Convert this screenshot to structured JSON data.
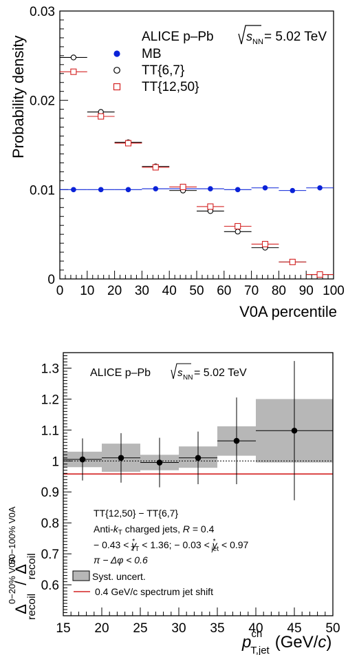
{
  "chart_data": [
    {
      "type": "scatter",
      "xlabel": "V0A percentile",
      "ylabel": "Probability density",
      "xlim": [
        0,
        100
      ],
      "ylim": [
        0,
        0.03
      ],
      "x_ticks": [
        "0",
        "10",
        "20",
        "30",
        "40",
        "50",
        "60",
        "70",
        "80",
        "90",
        "100"
      ],
      "y_ticks": [
        "0",
        "0.01",
        "0.02",
        "0.03"
      ],
      "legend": {
        "header_prefix": "ALICE p–Pb",
        "header_energy": "= 5.02 TeV",
        "entries": [
          {
            "label": "MB",
            "marker": "filled-circle",
            "color": "#0a22d8"
          },
          {
            "label": "TT{6,7}",
            "marker": "open-circle",
            "color": "#000000"
          },
          {
            "label": "TT{12,50}",
            "marker": "open-square",
            "color": "#d42020"
          }
        ]
      },
      "bin_width": 10,
      "x": [
        5,
        15,
        25,
        35,
        45,
        55,
        65,
        75,
        85,
        95
      ],
      "series": [
        {
          "name": "MB",
          "values": [
            0.01,
            0.01,
            0.01,
            0.0101,
            0.0101,
            0.0101,
            0.01,
            0.0102,
            0.0099,
            0.0102
          ]
        },
        {
          "name": "TT{6,7}",
          "values": [
            0.0248,
            0.0187,
            0.0153,
            0.0126,
            0.0099,
            0.0076,
            0.0053,
            0.0035,
            0.0019,
            0.0005
          ]
        },
        {
          "name": "TT{12,50}",
          "values": [
            0.0232,
            0.0182,
            0.0152,
            0.0125,
            0.0103,
            0.0081,
            0.0059,
            0.0039,
            0.0019,
            0.0005
          ]
        }
      ]
    },
    {
      "type": "scatter",
      "xlabel_main": "p",
      "xlabel_sup": "ch",
      "xlabel_sub": "T,jet",
      "xlabel_units": "(GeV/c)",
      "ylabel_left_main": "Δ",
      "ylabel_left_sup": "0−20% V0A",
      "ylabel_left_sub": "recoil",
      "ylabel_slash": "/",
      "ylabel_right_main": "Δ",
      "ylabel_right_sup": "50−100% V0A",
      "ylabel_right_sub": "recoil",
      "xlim": [
        15,
        50
      ],
      "ylim": [
        0.5,
        1.35
      ],
      "x_ticks": [
        "15",
        "20",
        "25",
        "30",
        "35",
        "40",
        "45",
        "50"
      ],
      "y_ticks": [
        "0.6",
        "0.7",
        "0.8",
        "0.9",
        "1",
        "1.1",
        "1.2",
        "1.3"
      ],
      "header_prefix": "ALICE p–Pb",
      "header_energy": "= 5.02 TeV",
      "annotations": [
        "TT{12,50} − TT{6,7}",
        "Anti-k_T charged jets, R = 0.4",
        "− 0.43 < y*_TT < 1.36;  − 0.03 < y*_jet < 0.97",
        "π − Δφ < 0.6"
      ],
      "legend": [
        {
          "label": "Syst. uncert.",
          "marker": "gray-box"
        },
        {
          "label": "0.4 GeV/c spectrum jet shift",
          "marker": "red-line",
          "color": "#d42020"
        }
      ],
      "reference_line": 1.0,
      "shift_line": 0.958,
      "bins": [
        [
          15,
          20
        ],
        [
          20,
          25
        ],
        [
          25,
          30
        ],
        [
          30,
          35
        ],
        [
          35,
          40
        ],
        [
          40,
          50
        ]
      ],
      "x": [
        17.5,
        22.5,
        27.5,
        32.5,
        37.5,
        45
      ],
      "values": [
        1.005,
        1.01,
        0.995,
        1.01,
        1.065,
        1.098
      ],
      "stat_err": [
        0.068,
        0.08,
        0.08,
        0.085,
        0.14,
        0.225
      ],
      "syst_low": [
        0.98,
        0.965,
        0.97,
        0.978,
        1.017,
        0.995
      ],
      "syst_high": [
        1.03,
        1.056,
        1.02,
        1.047,
        1.112,
        1.2
      ]
    }
  ]
}
